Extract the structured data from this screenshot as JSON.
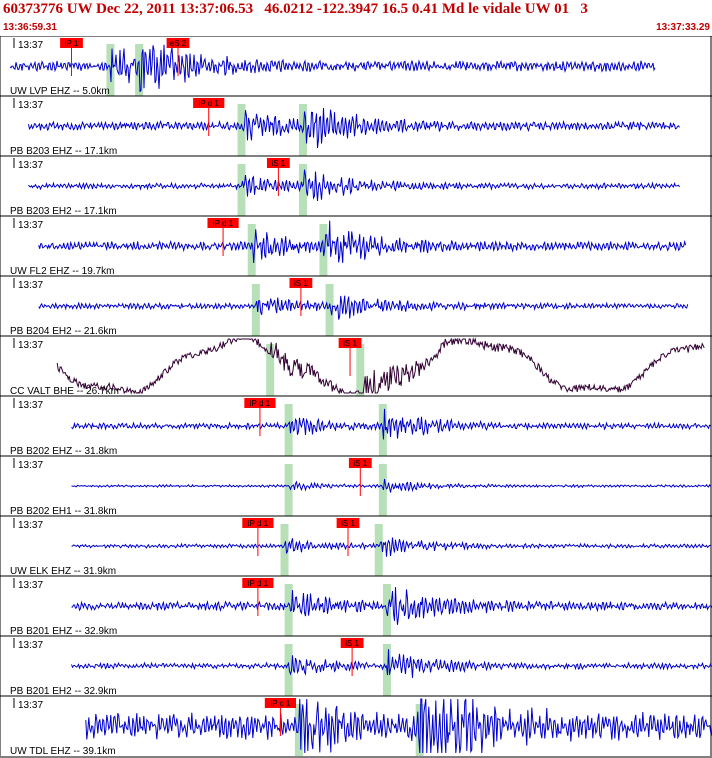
{
  "header": {
    "title": "60373776 UW Dec 22, 2011 13:37:06.53   46.0212 -122.3947 16.5 0.41 Md le vidale UW 01   3",
    "start_time": "13:36:59.31",
    "end_time": "13:37:33.29"
  },
  "colors": {
    "trace": "#0000cc",
    "trace_alt": "#330033",
    "pick_flag": "#ff0000",
    "pick_line": "#ff0000",
    "window": "#b8e0b8",
    "header_text": "#c00000"
  },
  "chart_data": {
    "type": "line",
    "title": "60373776 UW Dec 22, 2011 13:37:06.53   46.0212 -122.3947 16.5 0.41 Md le vidale UW 01   3",
    "x_range": [
      "13:36:59.31",
      "13:37:33.29"
    ],
    "x_range_seconds": [
      0,
      33.98
    ],
    "x_unit": "seconds after 13:36:59.31",
    "series": [
      {
        "name": "UW LVP EHZ -- 5.0km",
        "minute_label": "13:37",
        "channel": "EHZ",
        "start": 0.1,
        "end": 31.6,
        "amp": 0.22,
        "p": 5.0,
        "s": 6.4,
        "color": "trace",
        "picks": [
          {
            "label": "iP 1",
            "t": 3.1,
            "color": "red"
          },
          {
            "label": "eS 2",
            "t": 8.3,
            "color": "red"
          }
        ]
      },
      {
        "name": "PB B203 EHZ -- 17.1km",
        "minute_label": "13:37",
        "channel": "EHZ",
        "start": 1.0,
        "end": 32.8,
        "amp": 0.18,
        "p": 11.4,
        "s": 14.4,
        "color": "trace",
        "picks": [
          {
            "label": "iP d 1",
            "t": 9.8,
            "color": "red"
          }
        ]
      },
      {
        "name": "PB B203 EH2 -- 17.1km",
        "minute_label": "13:37",
        "channel": "EH2",
        "start": 1.0,
        "end": 32.8,
        "amp": 0.12,
        "p": 11.4,
        "s": 14.4,
        "color": "trace",
        "picks": [
          {
            "label": "iS 1",
            "t": 13.2,
            "color": "red"
          }
        ]
      },
      {
        "name": "UW FL2 EHZ -- 19.7km",
        "minute_label": "13:37",
        "channel": "EHZ",
        "start": 1.5,
        "end": 33.1,
        "amp": 0.18,
        "p": 11.9,
        "s": 15.4,
        "color": "trace",
        "picks": [
          {
            "label": "iP d 1",
            "t": 10.5,
            "color": "red"
          }
        ]
      },
      {
        "name": "PB B204 EH2 -- 21.6km",
        "minute_label": "13:37",
        "channel": "EH2",
        "start": 1.5,
        "end": 33.2,
        "amp": 0.12,
        "p": 12.1,
        "s": 15.7,
        "color": "trace",
        "picks": [
          {
            "label": "iS 1",
            "t": 14.3,
            "color": "red"
          }
        ]
      },
      {
        "name": "CC VALT BHE -- 26.7km",
        "minute_label": "13:37",
        "channel": "BHE",
        "start": 2.4,
        "end": 34.0,
        "amp": 0.55,
        "p": 12.8,
        "s": 17.2,
        "color": "trace_alt",
        "picks": [
          {
            "label": "iS 1",
            "t": 16.7,
            "color": "red"
          }
        ]
      },
      {
        "name": "PB B202 EHZ -- 31.8km",
        "minute_label": "13:37",
        "channel": "EHZ",
        "start": 3.1,
        "end": 34.3,
        "amp": 0.12,
        "p": 13.7,
        "s": 18.3,
        "color": "trace",
        "picks": [
          {
            "label": "iP d 1",
            "t": 12.3,
            "color": "red"
          }
        ]
      },
      {
        "name": "PB B202 EH1 -- 31.8km",
        "minute_label": "13:37",
        "channel": "EH1",
        "start": 3.1,
        "end": 34.3,
        "amp": 0.05,
        "p": 13.7,
        "s": 18.3,
        "color": "trace",
        "picks": [
          {
            "label": "iS 1",
            "t": 17.2,
            "color": "red"
          }
        ]
      },
      {
        "name": "UW ELK EHZ -- 31.9km",
        "minute_label": "13:37",
        "channel": "EHZ",
        "start": 3.1,
        "end": 34.3,
        "amp": 0.08,
        "p": 13.5,
        "s": 18.1,
        "color": "trace",
        "picks": [
          {
            "label": "iP d 1",
            "t": 12.2,
            "color": "red"
          },
          {
            "label": "iS 1",
            "t": 16.6,
            "color": "red"
          }
        ]
      },
      {
        "name": "PB B201 EHZ -- 32.9km",
        "minute_label": "13:37",
        "channel": "EHZ",
        "start": 3.1,
        "end": 34.7,
        "amp": 0.18,
        "p": 13.7,
        "s": 18.5,
        "color": "trace",
        "picks": [
          {
            "label": "iP d 1",
            "t": 12.2,
            "color": "red"
          }
        ]
      },
      {
        "name": "PB B201 EH2 -- 32.9km",
        "minute_label": "13:37",
        "channel": "EH2",
        "start": 3.1,
        "end": 34.7,
        "amp": 0.12,
        "p": 13.7,
        "s": 18.5,
        "color": "trace",
        "picks": [
          {
            "label": "iS 1",
            "t": 16.8,
            "color": "red"
          }
        ]
      },
      {
        "name": "UW TDL EHZ -- 39.1km",
        "minute_label": "13:37",
        "channel": "EHZ",
        "start": 3.8,
        "end": 35.6,
        "amp": 0.55,
        "p": 14.2,
        "s": 20.1,
        "color": "trace",
        "picks": [
          {
            "label": "iP c 1",
            "t": 13.3,
            "color": "red"
          }
        ]
      }
    ],
    "grid": false,
    "legend": "none"
  }
}
